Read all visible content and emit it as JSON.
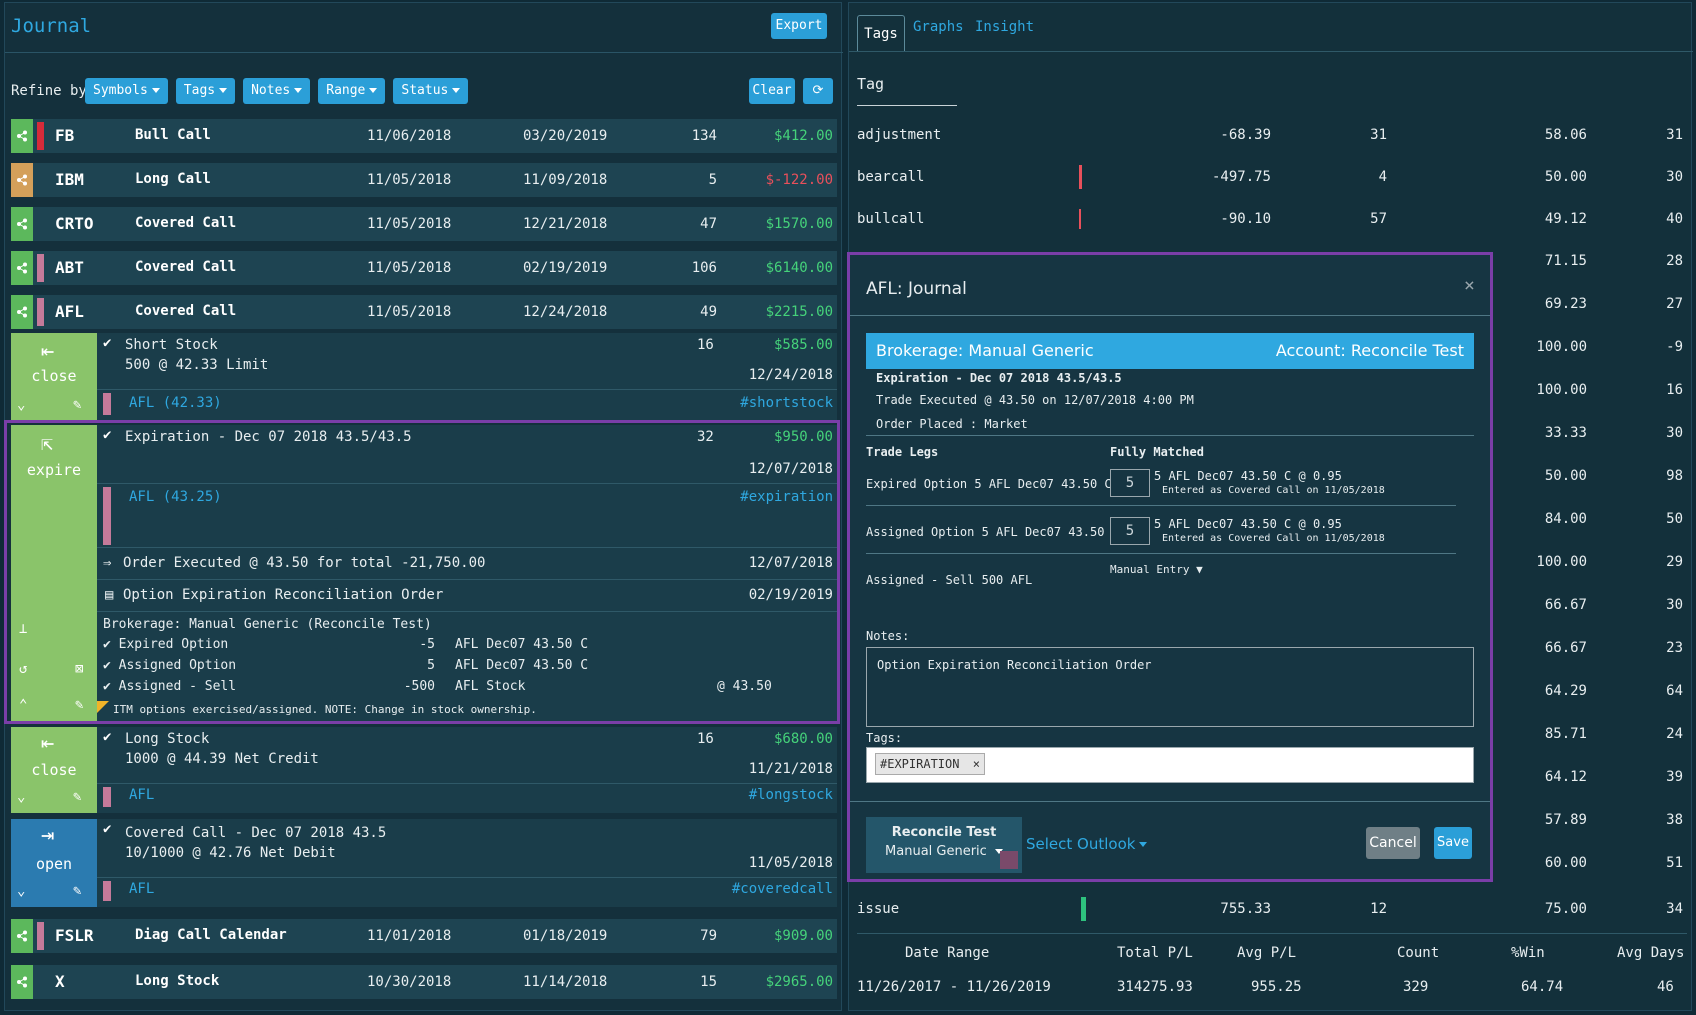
{
  "journal": {
    "title": "Journal",
    "export_label": "Export",
    "refine_label": "Refine by:",
    "filters": [
      "Symbols",
      "Tags",
      "Notes",
      "Range",
      "Status"
    ],
    "clear_label": "Clear",
    "trades": [
      {
        "symbol": "FB",
        "strategy": "Bull Call",
        "open": "11/06/2018",
        "close": "03/20/2019",
        "count": "134",
        "pl": "$412.00"
      },
      {
        "symbol": "IBM",
        "strategy": "Long Call",
        "open": "11/05/2018",
        "close": "11/09/2018",
        "count": "5",
        "pl": "$-122.00"
      },
      {
        "symbol": "CRTO",
        "strategy": "Covered Call",
        "open": "11/05/2018",
        "close": "12/21/2018",
        "count": "47",
        "pl": "$1570.00"
      },
      {
        "symbol": "ABT",
        "strategy": "Covered Call",
        "open": "11/05/2018",
        "close": "02/19/2019",
        "count": "106",
        "pl": "$6140.00"
      },
      {
        "symbol": "AFL",
        "strategy": "Covered Call",
        "open": "11/05/2018",
        "close": "12/24/2018",
        "count": "49",
        "pl": "$2215.00"
      },
      {
        "symbol": "FSLR",
        "strategy": "Diag Call Calendar",
        "open": "11/01/2018",
        "close": "01/18/2019",
        "count": "79",
        "pl": "$909.00"
      },
      {
        "symbol": "X",
        "strategy": "Long Stock",
        "open": "10/30/2018",
        "close": "11/14/2018",
        "count": "15",
        "pl": "$2965.00"
      }
    ],
    "short_stock": {
      "side": "close",
      "title": "Short Stock",
      "desc": "500 @ 42.33 Limit",
      "count": "16",
      "pl": "$585.00",
      "date": "12/24/2018",
      "link": "AFL (42.33)",
      "tag": "#shortstock"
    },
    "expiration": {
      "side": "expire",
      "title": "Expiration - Dec 07 2018 43.5/43.5",
      "count": "32",
      "pl": "$950.00",
      "date": "12/07/2018",
      "link": "AFL (43.25)",
      "tag": "#expiration",
      "order_exec": "Order Executed @ 43.50 for total -21,750.00",
      "order_exec_date": "12/07/2018",
      "order_name": "Option Expiration Reconciliation Order",
      "order_name_date": "02/19/2019",
      "brokerage": "Brokerage: Manual Generic (Reconcile Test)",
      "legs": [
        {
          "name": "Expired Option",
          "qty": "-5",
          "instrument": "AFL Dec07 43.50 C",
          "price": ""
        },
        {
          "name": "Assigned Option",
          "qty": "5",
          "instrument": "AFL Dec07 43.50 C",
          "price": ""
        },
        {
          "name": "Assigned - Sell",
          "qty": "-500",
          "instrument": "AFL Stock",
          "price": "@ 43.50"
        }
      ],
      "note": "ITM options exercised/assigned. NOTE: Change in stock ownership."
    },
    "long_stock": {
      "side": "close",
      "title": "Long Stock",
      "desc": "1000 @ 44.39 Net Credit",
      "count": "16",
      "pl": "$680.00",
      "date": "11/21/2018",
      "link": "AFL",
      "tag": "#longstock"
    },
    "covered_call": {
      "side": "open",
      "title": "Covered Call - Dec 07 2018 43.5",
      "desc": "10/1000 @ 42.76 Net Debit",
      "date": "11/05/2018",
      "link": "AFL",
      "tag": "#coveredcall"
    }
  },
  "insight": {
    "tabs": [
      "Tags",
      "Graphs",
      "Insight"
    ],
    "tag_header": "Tag",
    "rows": [
      {
        "tag": "adjustment",
        "total": "-68.39",
        "count": "31",
        "win": "58.06",
        "days": "31"
      },
      {
        "tag": "bearcall",
        "total": "-497.75",
        "count": "4",
        "win": "50.00",
        "days": "30"
      },
      {
        "tag": "bullcall",
        "total": "-90.10",
        "count": "57",
        "win": "49.12",
        "days": "40"
      }
    ],
    "right_rows": [
      {
        "win": "71.15",
        "days": "28"
      },
      {
        "win": "69.23",
        "days": "27"
      },
      {
        "win": "100.00",
        "days": "-9"
      },
      {
        "win": "100.00",
        "days": "16"
      },
      {
        "win": "33.33",
        "days": "30"
      },
      {
        "win": "50.00",
        "days": "98"
      },
      {
        "win": "84.00",
        "days": "50"
      },
      {
        "win": "100.00",
        "days": "29"
      },
      {
        "win": "66.67",
        "days": "30"
      },
      {
        "win": "66.67",
        "days": "23"
      },
      {
        "win": "64.29",
        "days": "64"
      },
      {
        "win": "85.71",
        "days": "24"
      },
      {
        "win": "64.12",
        "days": "39"
      },
      {
        "win": "57.89",
        "days": "38"
      },
      {
        "win": "60.00",
        "days": "51"
      }
    ],
    "issue_row": {
      "tag": "issue",
      "total": "755.33",
      "count": "12",
      "win": "75.00",
      "days": "34"
    },
    "summary_headers": [
      "Date Range",
      "Total P/L",
      "Avg P/L",
      "Count",
      "%Win",
      "Avg Days"
    ],
    "summary": [
      "11/26/2017 - 11/26/2019",
      "314275.93",
      "955.25",
      "329",
      "64.74",
      "46"
    ]
  },
  "modal": {
    "title": "AFL: Journal",
    "brokerage": "Brokerage: Manual Generic",
    "account": "Account: Reconcile Test",
    "expiration": "Expiration - Dec 07 2018 43.5/43.5",
    "executed": "Trade Executed @ 43.50 on 12/07/2018 4:00 PM",
    "placed": "Order Placed : Market",
    "legs_header": "Trade Legs",
    "matched_header": "Fully Matched",
    "legs": [
      {
        "label": "Expired Option  5 AFL Dec07 43.50 C",
        "qty": "5",
        "match": "5 AFL Dec07 43.50 C @ 0.95",
        "sub": "Entered as Covered Call on 11/05/2018"
      },
      {
        "label": "Assigned Option  5 AFL Dec07 43.50 C",
        "qty": "5",
        "match": "5 AFL Dec07 43.50 C @ 0.95",
        "sub": "Entered as Covered Call on 11/05/2018"
      }
    ],
    "assigned": "Assigned - Sell  500 AFL",
    "manual_entry": "Manual Entry",
    "notes_label": "Notes:",
    "notes_value": "Option Expiration Reconciliation Order",
    "tags_label": "Tags:",
    "tag_chip": "#EXPIRATION",
    "account_btn_line1": "Reconcile Test",
    "account_btn_line2": "Manual Generic",
    "outlook": "Select Outlook",
    "cancel": "Cancel",
    "save": "Save"
  }
}
